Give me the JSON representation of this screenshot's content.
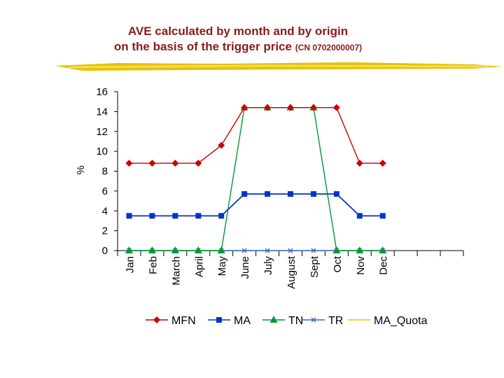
{
  "title": {
    "line1": "AVE calculated by month and by  origin",
    "line2": "on the basis of the trigger price",
    "code": "(CN 0702000007)"
  },
  "colors": {
    "title": "#8b1a1a",
    "brush": "#e6c200"
  },
  "chart_data": {
    "type": "line",
    "title": "AVE calculated by month and by origin on the basis of the trigger price (CN 0702000007)",
    "xlabel": "",
    "ylabel": "%",
    "ylim": [
      0,
      16
    ],
    "yticks": [
      0,
      2,
      4,
      6,
      8,
      10,
      12,
      14,
      16
    ],
    "categories": [
      "Jan",
      "Feb",
      "March",
      "April",
      "May",
      "June",
      "July",
      "August",
      "Sept",
      "Oct",
      "Nov",
      "Dec"
    ],
    "extra_slots": 3,
    "grid": false,
    "legend_position": "bottom",
    "series": [
      {
        "name": "MFN",
        "color": "#cc0000",
        "marker": "diamond",
        "values": [
          8.8,
          8.8,
          8.8,
          8.8,
          10.6,
          14.4,
          14.4,
          14.4,
          14.4,
          14.4,
          8.8,
          8.8
        ]
      },
      {
        "name": "MA",
        "color": "#0033cc",
        "marker": "square",
        "values": [
          3.5,
          3.5,
          3.5,
          3.5,
          3.5,
          5.7,
          5.7,
          5.7,
          5.7,
          5.7,
          3.5,
          3.5
        ]
      },
      {
        "name": "TN",
        "color": "#009933",
        "marker": "triangle",
        "values": [
          0,
          0,
          0,
          0,
          0,
          14.4,
          14.4,
          14.4,
          14.4,
          0,
          0,
          0
        ]
      },
      {
        "name": "TR",
        "color": "#3366cc",
        "marker": "x",
        "values": [
          0,
          0,
          0,
          0,
          0,
          0,
          0,
          0,
          0,
          0,
          0,
          0
        ]
      },
      {
        "name": "MA_Quota",
        "color": "#e6c200",
        "marker": "none",
        "values": [
          0,
          0,
          0,
          0,
          0,
          0,
          0,
          0,
          0,
          0,
          0,
          0
        ]
      }
    ]
  }
}
